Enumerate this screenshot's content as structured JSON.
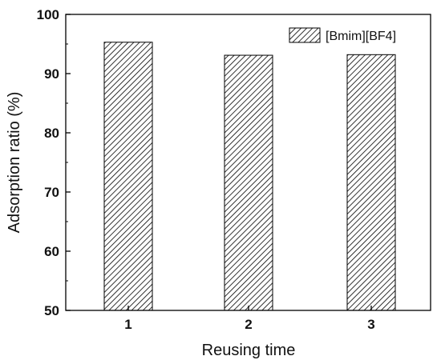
{
  "chart_data": {
    "type": "bar",
    "categories": [
      "1",
      "2",
      "3"
    ],
    "series": [
      {
        "name": "[Bmim][BF4]",
        "values": [
          95.3,
          93.1,
          93.2
        ]
      }
    ],
    "title": "",
    "xlabel": "Reusing time",
    "ylabel": "Adsorption ratio (%)",
    "ylim": [
      50,
      100
    ],
    "yticks": [
      "50",
      "60",
      "70",
      "80",
      "90",
      "100"
    ],
    "grid": false,
    "legend_position": "top-right",
    "bar_fill": "hatched",
    "colors": {
      "bar_stroke": "#000000",
      "hatch": "#000000",
      "axis": "#000000"
    }
  }
}
